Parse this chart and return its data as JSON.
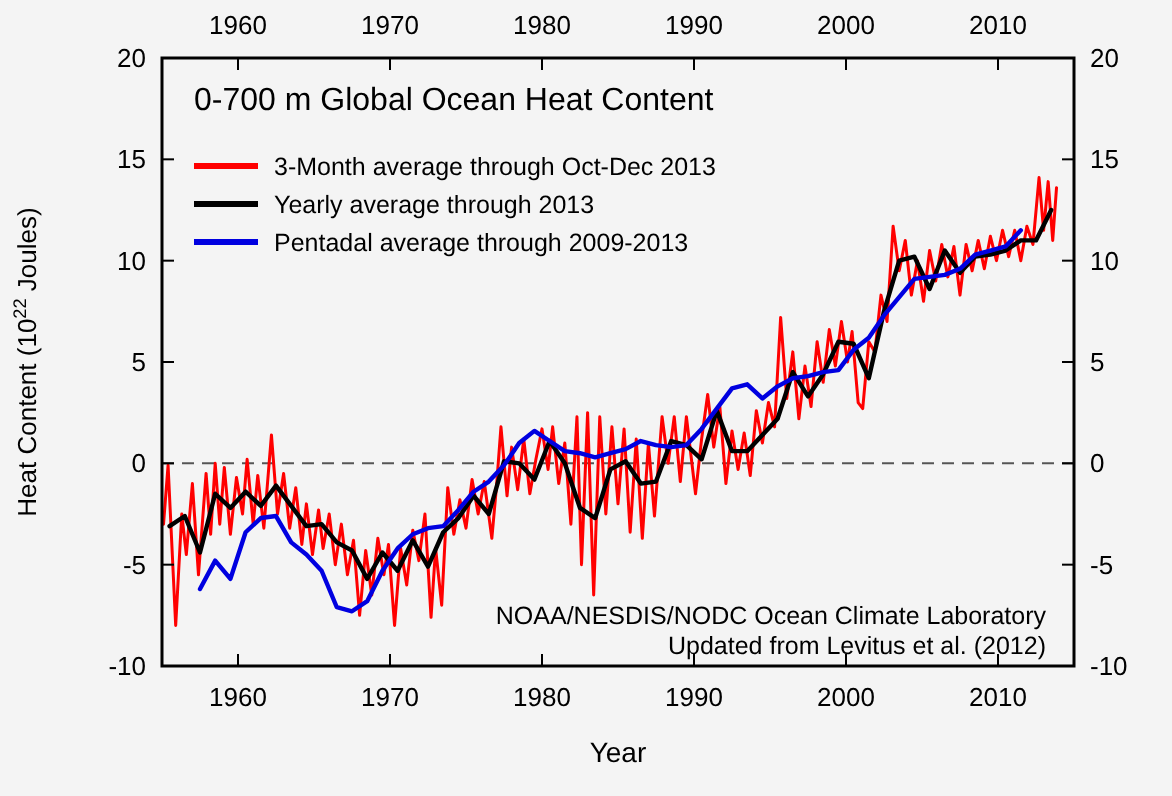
{
  "chart_data": {
    "type": "line",
    "title": "0-700 m Global Ocean Heat Content",
    "xlabel": "Year",
    "ylabel": "Heat Content (10$^{22}$ Joules)",
    "xlim": [
      1955,
      2015
    ],
    "xticks": [
      1960,
      1970,
      1980,
      1990,
      2000,
      2010
    ],
    "x2lim": [
      1955,
      2015
    ],
    "x2ticks": [
      1960,
      1970,
      1980,
      1990,
      2000,
      2010
    ],
    "ylim": [
      -10,
      20
    ],
    "yticks": [
      -10,
      -5,
      0,
      5,
      10,
      15,
      20
    ],
    "y2lim": [
      -10,
      20
    ],
    "y2ticks": [
      -10,
      -5,
      0,
      5,
      10,
      15,
      20
    ],
    "grid": false,
    "legend": "top left",
    "marker": "none",
    "line_style": "solid",
    "ref_lines": [
      {
        "axis": "y",
        "value": 0,
        "color": "#555555",
        "line_style": "dashed"
      }
    ],
    "annotations": [
      "NOAA/NESDIS/NODC Ocean Climate Laboratory",
      "Updated from Levitus et al. (2012)"
    ],
    "series": [
      {
        "name": "3-Month average through Oct-Dec 2013",
        "color": "#ff0000",
        "x": [
          1955.1,
          1955.4,
          1955.9,
          1956.3,
          1956.6,
          1957.0,
          1957.4,
          1957.9,
          1958.2,
          1958.5,
          1958.8,
          1959.1,
          1959.5,
          1959.9,
          1960.3,
          1960.6,
          1961.0,
          1961.3,
          1961.7,
          1962.2,
          1962.6,
          1963.0,
          1963.4,
          1963.8,
          1964.2,
          1964.5,
          1964.9,
          1965.3,
          1965.6,
          1966.0,
          1966.4,
          1966.8,
          1967.2,
          1967.6,
          1968.0,
          1968.4,
          1968.8,
          1969.2,
          1969.6,
          1969.9,
          1970.3,
          1970.7,
          1971.1,
          1971.5,
          1971.9,
          1972.3,
          1972.7,
          1973.0,
          1973.4,
          1973.8,
          1974.2,
          1974.6,
          1975.0,
          1975.4,
          1975.8,
          1976.2,
          1976.7,
          1977.0,
          1977.3,
          1977.7,
          1978.0,
          1978.4,
          1978.8,
          1979.2,
          1979.6,
          1980.0,
          1980.4,
          1980.7,
          1981.1,
          1981.5,
          1981.9,
          1982.3,
          1982.6,
          1983.0,
          1983.4,
          1983.8,
          1984.2,
          1984.6,
          1985.0,
          1985.4,
          1985.8,
          1986.2,
          1986.6,
          1987.0,
          1987.4,
          1987.9,
          1988.3,
          1988.7,
          1989.1,
          1989.5,
          1990.1,
          1990.5,
          1990.9,
          1991.3,
          1991.7,
          1992.1,
          1992.5,
          1992.9,
          1993.3,
          1993.7,
          1994.1,
          1994.5,
          1994.9,
          1995.3,
          1995.7,
          1996.1,
          1996.5,
          1996.9,
          1997.3,
          1997.7,
          1998.1,
          1998.5,
          1998.9,
          1999.3,
          1999.7,
          2000.1,
          2000.4,
          2000.8,
          2001.1,
          2001.5,
          2001.9,
          2002.3,
          2002.7,
          2003.1,
          2003.5,
          2003.9,
          2004.3,
          2004.7,
          2005.1,
          2005.5,
          2005.9,
          2006.3,
          2006.7,
          2007.1,
          2007.5,
          2007.9,
          2008.3,
          2008.7,
          2009.1,
          2009.5,
          2009.9,
          2010.3,
          2010.7,
          2011.1,
          2011.5,
          2011.9,
          2012.3,
          2012.7,
          2013.0,
          2013.3,
          2013.6,
          2013.85
        ],
        "values": [
          -3,
          -0.1,
          -8,
          -2.5,
          -4.5,
          -1,
          -5.5,
          -0.5,
          -3.5,
          0,
          -3,
          -0.2,
          -3.5,
          -0.7,
          -2.5,
          0.2,
          -3,
          -0.6,
          -3.2,
          1.4,
          -2.5,
          -0.5,
          -3.2,
          -1.2,
          -4,
          -2,
          -4.5,
          -2.3,
          -4.2,
          -2.5,
          -5,
          -3,
          -5.5,
          -3.8,
          -7.5,
          -4.3,
          -6.5,
          -3.7,
          -5.5,
          -4,
          -8,
          -4.2,
          -6,
          -3.3,
          -4.8,
          -2.5,
          -7.6,
          -4.2,
          -7,
          -1.2,
          -3.5,
          -1.8,
          -3.2,
          -0.8,
          -2.5,
          -0.9,
          -3.7,
          -1.2,
          1.8,
          -1.6,
          0.8,
          -1.3,
          1.2,
          -1.5,
          0.2,
          1.7,
          -0.3,
          1.8,
          -1,
          1,
          -3,
          2.3,
          -5,
          2.5,
          -6.5,
          2.3,
          -2.5,
          1.8,
          -2,
          1.7,
          -3.4,
          1.2,
          -3.7,
          1,
          -2.6,
          2.3,
          0,
          2.3,
          -0.9,
          2.3,
          -1.5,
          1.2,
          3.4,
          0.8,
          2.8,
          -1,
          1.6,
          -0.3,
          1.5,
          -0.6,
          2.6,
          1,
          3,
          1.8,
          7.2,
          3.2,
          5.5,
          2.2,
          4.8,
          2.8,
          6,
          4,
          6.6,
          4.8,
          7,
          5,
          6.5,
          3,
          2.7,
          6,
          5.5,
          8.3,
          7,
          11.7,
          9.5,
          11,
          8.3,
          10,
          8,
          10.5,
          9,
          10.8,
          9.2,
          10.7,
          8.3,
          10.8,
          9.5,
          11,
          9.6,
          11.2,
          10,
          11.5,
          10.2,
          11.5,
          10,
          11.7,
          10.8,
          14.1,
          11.5,
          13.9,
          11,
          13.6
        ]
      },
      {
        "name": "Yearly average through 2013",
        "color": "#000000",
        "x": [
          1955.5,
          1956.5,
          1957.5,
          1958.5,
          1959.5,
          1960.5,
          1961.5,
          1962.5,
          1963.5,
          1964.5,
          1965.5,
          1966.5,
          1967.5,
          1968.5,
          1969.5,
          1970.5,
          1971.5,
          1972.5,
          1973.5,
          1974.5,
          1975.5,
          1976.5,
          1977.5,
          1978.5,
          1979.5,
          1980.5,
          1981.5,
          1982.5,
          1983.5,
          1984.5,
          1985.5,
          1986.5,
          1987.5,
          1988.5,
          1989.5,
          1990.5,
          1991.5,
          1992.5,
          1993.5,
          1994.5,
          1995.5,
          1996.5,
          1997.5,
          1998.5,
          1999.5,
          2000.5,
          2001.5,
          2002.5,
          2003.5,
          2004.5,
          2005.5,
          2006.5,
          2007.5,
          2008.5,
          2009.5,
          2010.5,
          2011.5,
          2012.5,
          2013.5
        ],
        "values": [
          -3.1,
          -2.6,
          -4.4,
          -1.5,
          -2.2,
          -1.4,
          -2.1,
          -1.1,
          -2.1,
          -3.1,
          -3,
          -3.9,
          -4.3,
          -5.7,
          -4.4,
          -5.3,
          -3.8,
          -5.1,
          -3.4,
          -2.7,
          -1.6,
          -2.5,
          0.1,
          0,
          -0.8,
          1.1,
          0,
          -2.2,
          -2.7,
          -0.3,
          0.1,
          -1,
          -0.9,
          1.1,
          0.9,
          0.2,
          2.6,
          0.6,
          0.6,
          1.4,
          2.2,
          4.5,
          3.3,
          4.4,
          6,
          5.9,
          4.2,
          7.5,
          10,
          10.2,
          8.6,
          10.5,
          9.4,
          10.2,
          10.3,
          10.5,
          11,
          11,
          12.5
        ]
      },
      {
        "name": "Pentadal average through 2009-2013",
        "color": "#0000e0",
        "x": [
          1957.5,
          1958.5,
          1959.5,
          1960.5,
          1961.5,
          1962.5,
          1963.5,
          1964.5,
          1965.5,
          1966.5,
          1967.5,
          1968.5,
          1969.5,
          1970.5,
          1971.5,
          1972.5,
          1973.5,
          1974.5,
          1975.5,
          1976.5,
          1977.5,
          1978.5,
          1979.5,
          1980.5,
          1981.5,
          1982.5,
          1983.5,
          1984.5,
          1985.5,
          1986.5,
          1987.5,
          1988.5,
          1989.5,
          1990.5,
          1991.5,
          1992.5,
          1993.5,
          1994.5,
          1995.5,
          1996.5,
          1997.5,
          1998.5,
          1999.5,
          2000.5,
          2001.5,
          2002.5,
          2003.5,
          2004.5,
          2005.5,
          2006.5,
          2007.5,
          2008.5,
          2009.5,
          2010.5,
          2011.5
        ],
        "values": [
          -6.2,
          -4.8,
          -5.7,
          -3.4,
          -2.7,
          -2.6,
          -3.9,
          -4.5,
          -5.3,
          -7.1,
          -7.3,
          -6.8,
          -5.3,
          -4.2,
          -3.5,
          -3.2,
          -3.1,
          -2.3,
          -1.4,
          -0.9,
          -0.1,
          1,
          1.6,
          1.1,
          0.6,
          0.5,
          0.3,
          0.5,
          0.7,
          1.1,
          0.9,
          0.8,
          0.9,
          1.7,
          2.7,
          3.7,
          3.9,
          3.2,
          3.8,
          4.2,
          4.3,
          4.5,
          4.6,
          5.6,
          6.2,
          7.3,
          8.2,
          9.1,
          9.2,
          9.3,
          9.6,
          10.3,
          10.5,
          10.7,
          11.5
        ]
      }
    ]
  }
}
